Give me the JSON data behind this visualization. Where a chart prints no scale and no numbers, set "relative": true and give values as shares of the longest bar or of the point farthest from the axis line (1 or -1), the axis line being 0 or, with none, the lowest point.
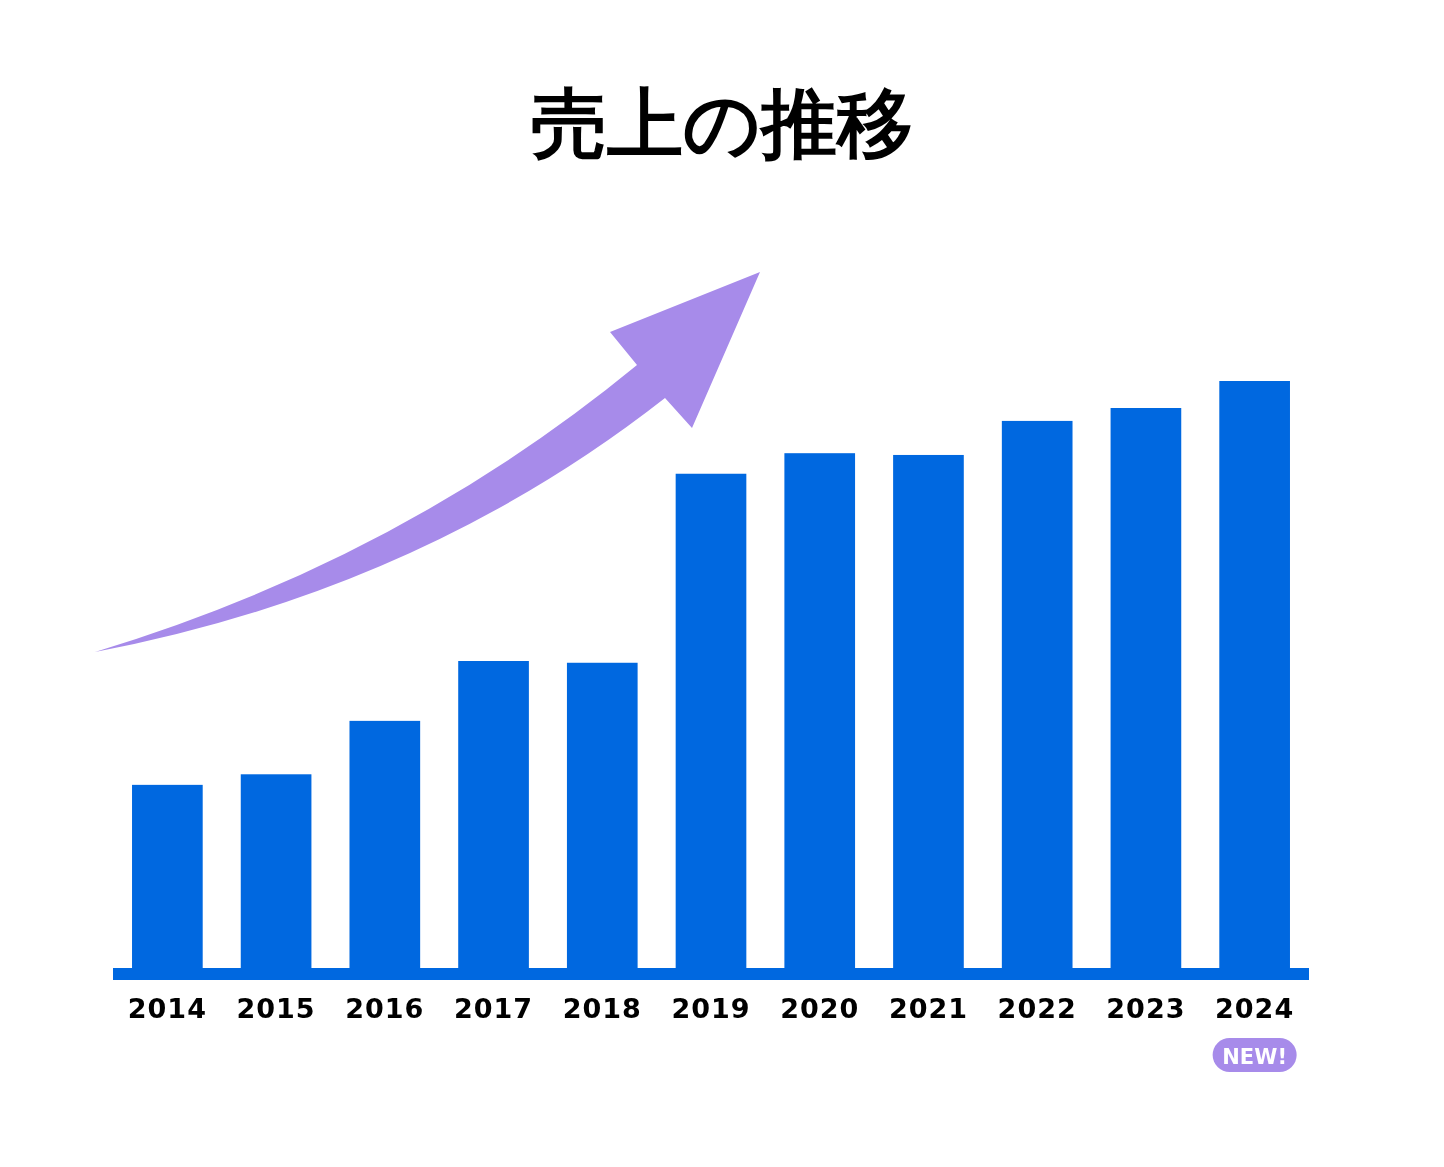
{
  "chart_data": {
    "type": "bar",
    "title": "売上の推移",
    "relative": true,
    "color": "#0068e0",
    "categories": [
      "2014",
      "2015",
      "2016",
      "2017",
      "2018",
      "2019",
      "2020",
      "2021",
      "2022",
      "2023",
      "2024"
    ],
    "values": [
      0.312,
      0.33,
      0.421,
      0.523,
      0.52,
      0.842,
      0.877,
      0.874,
      0.932,
      0.954,
      1
    ],
    "annotations": [
      "NEW!"
    ]
  }
}
